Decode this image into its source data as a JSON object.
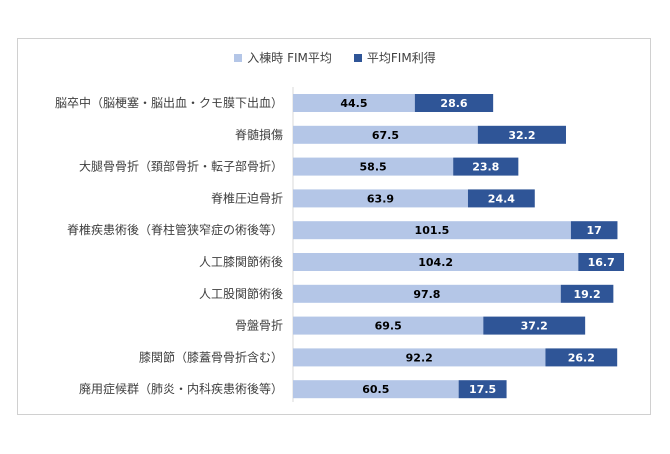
{
  "chart_data": {
    "type": "bar",
    "orientation": "horizontal",
    "stacked": true,
    "categories": [
      "脳卒中（脳梗塞・脳出血・クモ膜下出血）",
      "脊髄損傷",
      "大腿骨骨折（頚部骨折・転子部骨折）",
      "脊椎圧迫骨折",
      "脊椎疾患術後（脊柱管狭窄症の術後等）",
      "人工膝関節術後",
      "人工股関節術後",
      "骨盤骨折",
      "膝関節（膝蓋骨骨折含む）",
      "廃用症候群（肺炎・内科疾患術後等）"
    ],
    "series": [
      {
        "name": "入棟時 FIM平均",
        "values": [
          44.5,
          67.5,
          58.5,
          63.9,
          101.5,
          104.2,
          97.8,
          69.5,
          92.2,
          60.5
        ],
        "color": "#b4c6e7"
      },
      {
        "name": "平均FIM利得",
        "values": [
          28.6,
          32.2,
          23.8,
          24.4,
          17,
          16.7,
          19.2,
          37.2,
          26.2,
          17.5
        ],
        "color": "#2f5597"
      }
    ],
    "value_labels": [
      [
        "44.5",
        "67.5",
        "58.5",
        "63.9",
        "101.5",
        "104.2",
        "97.8",
        "69.5",
        "92.2",
        "60.5"
      ],
      [
        "28.6",
        "32.2",
        "23.8",
        "24.4",
        "17",
        "16.7",
        "19.2",
        "37.2",
        "26.2",
        "17.5"
      ]
    ],
    "xlim": [
      0,
      126
    ],
    "legend_position": "top",
    "grid": false
  }
}
